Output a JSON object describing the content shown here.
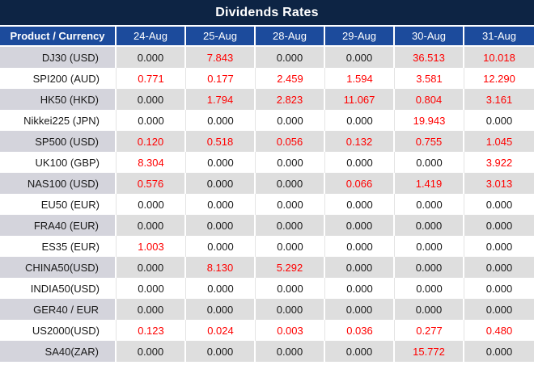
{
  "title": "Dividends Rates",
  "colors": {
    "title_bar_bg": "#0d2444",
    "header_bg": "#1c4b9c",
    "stripe_product_bg": "#d4d4dc",
    "stripe_value_bg": "#dedede",
    "zero_value_text": "#1a1a1a",
    "nonzero_value_text": "#ff0000",
    "header_text": "#ffffff"
  },
  "table": {
    "product_header": "Product / Currency",
    "date_headers": [
      "24-Aug",
      "25-Aug",
      "28-Aug",
      "29-Aug",
      "30-Aug",
      "31-Aug"
    ],
    "rows": [
      {
        "product": "DJ30 (USD)",
        "values": [
          "0.000",
          "7.843",
          "0.000",
          "0.000",
          "36.513",
          "10.018"
        ]
      },
      {
        "product": "SPI200 (AUD)",
        "values": [
          "0.771",
          "0.177",
          "2.459",
          "1.594",
          "3.581",
          "12.290"
        ]
      },
      {
        "product": "HK50 (HKD)",
        "values": [
          "0.000",
          "1.794",
          "2.823",
          "11.067",
          "0.804",
          "3.161"
        ]
      },
      {
        "product": "Nikkei225 (JPN)",
        "values": [
          "0.000",
          "0.000",
          "0.000",
          "0.000",
          "19.943",
          "0.000"
        ]
      },
      {
        "product": "SP500 (USD)",
        "values": [
          "0.120",
          "0.518",
          "0.056",
          "0.132",
          "0.755",
          "1.045"
        ]
      },
      {
        "product": "UK100 (GBP)",
        "values": [
          "8.304",
          "0.000",
          "0.000",
          "0.000",
          "0.000",
          "3.922"
        ]
      },
      {
        "product": "NAS100 (USD)",
        "values": [
          "0.576",
          "0.000",
          "0.000",
          "0.066",
          "1.419",
          "3.013"
        ]
      },
      {
        "product": "EU50 (EUR)",
        "values": [
          "0.000",
          "0.000",
          "0.000",
          "0.000",
          "0.000",
          "0.000"
        ]
      },
      {
        "product": "FRA40 (EUR)",
        "values": [
          "0.000",
          "0.000",
          "0.000",
          "0.000",
          "0.000",
          "0.000"
        ]
      },
      {
        "product": "ES35 (EUR)",
        "values": [
          "1.003",
          "0.000",
          "0.000",
          "0.000",
          "0.000",
          "0.000"
        ]
      },
      {
        "product": "CHINA50(USD)",
        "values": [
          "0.000",
          "8.130",
          "5.292",
          "0.000",
          "0.000",
          "0.000"
        ]
      },
      {
        "product": "INDIA50(USD)",
        "values": [
          "0.000",
          "0.000",
          "0.000",
          "0.000",
          "0.000",
          "0.000"
        ]
      },
      {
        "product": "GER40 / EUR",
        "values": [
          "0.000",
          "0.000",
          "0.000",
          "0.000",
          "0.000",
          "0.000"
        ]
      },
      {
        "product": "US2000(USD)",
        "values": [
          "0.123",
          "0.024",
          "0.003",
          "0.036",
          "0.277",
          "0.480"
        ]
      },
      {
        "product": "SA40(ZAR)",
        "values": [
          "0.000",
          "0.000",
          "0.000",
          "0.000",
          "15.772",
          "0.000"
        ]
      }
    ],
    "value_style_rule": "values equal to 0.000 render black; non-zero values render red",
    "striping": "odd rows gray, even rows white"
  }
}
